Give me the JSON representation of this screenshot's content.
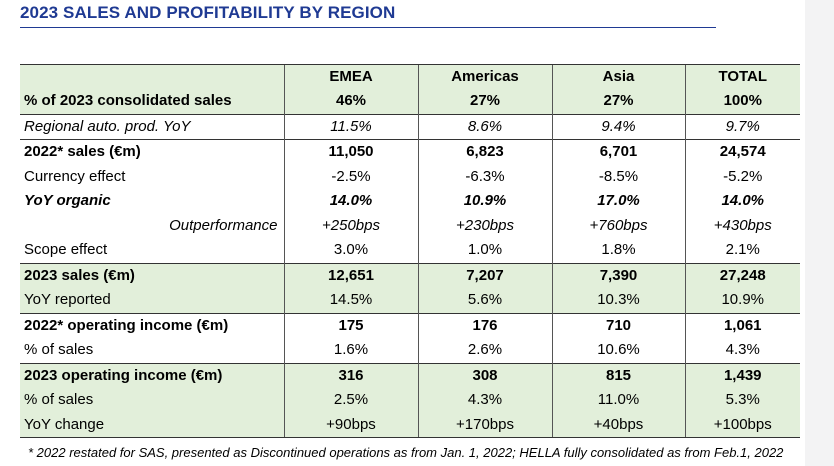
{
  "title": "2023 SALES AND PROFITABILITY BY REGION",
  "columns": [
    "EMEA",
    "Americas",
    "Asia",
    "TOTAL"
  ],
  "rows": [
    {
      "label": "% of 2023 consolidated sales",
      "values": [
        "46%",
        "27%",
        "27%",
        "100%"
      ]
    },
    {
      "label": "Regional auto. prod. YoY",
      "values": [
        "11.5%",
        "8.6%",
        "9.4%",
        "9.7%"
      ]
    },
    {
      "label": "2022* sales (€m)",
      "values": [
        "11,050",
        "6,823",
        "6,701",
        "24,574"
      ]
    },
    {
      "label": "Currency effect",
      "values": [
        "-2.5%",
        "-6.3%",
        "-8.5%",
        "-5.2%"
      ]
    },
    {
      "label": "YoY organic",
      "values": [
        "14.0%",
        "10.9%",
        "17.0%",
        "14.0%"
      ]
    },
    {
      "label": "Outperformance",
      "values": [
        "+250bps",
        "+230bps",
        "+760bps",
        "+430bps"
      ]
    },
    {
      "label": "Scope effect",
      "values": [
        "3.0%",
        "1.0%",
        "1.8%",
        "2.1%"
      ]
    },
    {
      "label": "2023 sales (€m)",
      "values": [
        "12,651",
        "7,207",
        "7,390",
        "27,248"
      ]
    },
    {
      "label": "YoY reported",
      "values": [
        "14.5%",
        "5.6%",
        "10.3%",
        "10.9%"
      ]
    },
    {
      "label": "2022* operating income (€m)",
      "values": [
        "175",
        "176",
        "710",
        "1,061"
      ]
    },
    {
      "label": "% of sales",
      "values": [
        "1.6%",
        "2.6%",
        "10.6%",
        "4.3%"
      ]
    },
    {
      "label": "2023 operating income (€m)",
      "values": [
        "316",
        "308",
        "815",
        "1,439"
      ]
    },
    {
      "label": "% of sales",
      "values": [
        "2.5%",
        "4.3%",
        "11.0%",
        "5.3%"
      ]
    },
    {
      "label": "YoY change",
      "values": [
        "+90bps",
        "+170bps",
        "+40bps",
        "+100bps"
      ]
    }
  ],
  "footnote": "* 2022 restated for SAS, presented as Discontinued operations as from Jan. 1, 2022; HELLA fully consolidated as from Feb.1, 2022",
  "colors": {
    "title": "#1f3a93",
    "shade": "#e2efda"
  }
}
